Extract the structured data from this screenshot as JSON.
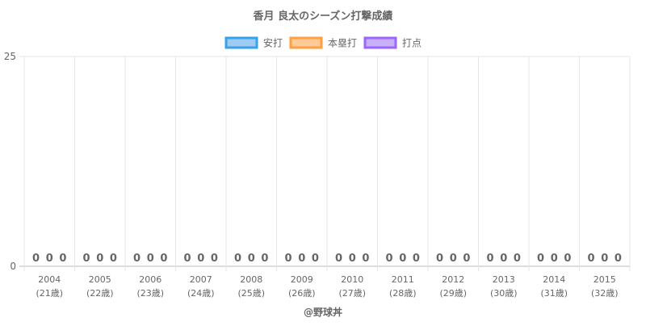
{
  "chart_data": {
    "type": "bar",
    "title": "香月 良太のシーズン打撃成績",
    "categories": [
      "2004",
      "2005",
      "2006",
      "2007",
      "2008",
      "2009",
      "2010",
      "2011",
      "2012",
      "2013",
      "2014",
      "2015"
    ],
    "category_sublabels": [
      "(21歳)",
      "(22歳)",
      "(23歳)",
      "(24歳)",
      "(25歳)",
      "(26歳)",
      "(27歳)",
      "(28歳)",
      "(29歳)",
      "(30歳)",
      "(31歳)",
      "(32歳)"
    ],
    "series": [
      {
        "name": "安打",
        "values": [
          0,
          0,
          0,
          0,
          0,
          0,
          0,
          0,
          0,
          0,
          0,
          0
        ],
        "fill": "#9fcbf2",
        "stroke": "#36a2eb"
      },
      {
        "name": "本塁打",
        "values": [
          0,
          0,
          0,
          0,
          0,
          0,
          0,
          0,
          0,
          0,
          0,
          0
        ],
        "fill": "#ffc998",
        "stroke": "#ff9f40"
      },
      {
        "name": "打点",
        "values": [
          0,
          0,
          0,
          0,
          0,
          0,
          0,
          0,
          0,
          0,
          0,
          0
        ],
        "fill": "#c9b0fb",
        "stroke": "#9966ff"
      }
    ],
    "ylim": [
      0,
      25
    ],
    "y_ticks": [
      0,
      25
    ],
    "grid": true,
    "legend": "top-center",
    "data_labels": true
  },
  "footer": {
    "credit": "@野球丼"
  },
  "colors": {
    "grid": "#e6e6e6",
    "axis": "#bbbbbb",
    "text": "#666666",
    "label": "#666666"
  }
}
